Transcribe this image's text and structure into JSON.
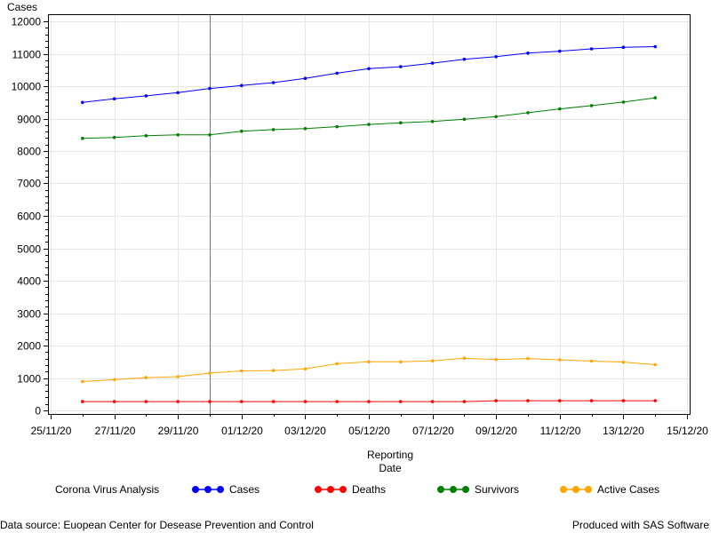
{
  "chart_data": {
    "type": "line",
    "ylabel": "Cases",
    "xlabel_lines": [
      "Reporting",
      "Date"
    ],
    "ylim": [
      0,
      12000
    ],
    "yticks": [
      0,
      1000,
      2000,
      3000,
      4000,
      5000,
      6000,
      7000,
      8000,
      9000,
      10000,
      11000,
      12000
    ],
    "xlim": [
      "2020-11-25",
      "2020-12-15"
    ],
    "xtick_labels": [
      "25/11/20",
      "27/11/20",
      "29/11/20",
      "01/12/20",
      "03/12/20",
      "05/12/20",
      "07/12/20",
      "09/12/20",
      "11/12/20",
      "13/12/20",
      "15/12/20"
    ],
    "reference_line_x": "2020-11-30",
    "grid": true,
    "legend_position": "bottom",
    "x": [
      "2020-11-26",
      "2020-11-27",
      "2020-11-28",
      "2020-11-29",
      "2020-11-30",
      "2020-12-01",
      "2020-12-02",
      "2020-12-03",
      "2020-12-04",
      "2020-12-05",
      "2020-12-06",
      "2020-12-07",
      "2020-12-08",
      "2020-12-09",
      "2020-12-10",
      "2020-12-11",
      "2020-12-12",
      "2020-12-13",
      "2020-12-14"
    ],
    "series": [
      {
        "name": "Cases",
        "color": "#0000ff",
        "values": [
          9500,
          9610,
          9700,
          9800,
          9930,
          10020,
          10110,
          10240,
          10400,
          10540,
          10600,
          10710,
          10830,
          10910,
          11020,
          11080,
          11150,
          11200,
          11220
        ]
      },
      {
        "name": "Deaths",
        "color": "#ff0000",
        "values": [
          270,
          270,
          270,
          270,
          270,
          270,
          270,
          270,
          270,
          270,
          270,
          270,
          270,
          300,
          300,
          300,
          300,
          300,
          300
        ]
      },
      {
        "name": "Survivors",
        "color": "#008000",
        "values": [
          8390,
          8420,
          8470,
          8500,
          8500,
          8610,
          8660,
          8690,
          8750,
          8820,
          8870,
          8910,
          8980,
          9060,
          9180,
          9300,
          9400,
          9510,
          9640
        ]
      },
      {
        "name": "Active Cases",
        "color": "#ffa500",
        "values": [
          890,
          950,
          1010,
          1040,
          1150,
          1220,
          1230,
          1280,
          1440,
          1500,
          1500,
          1530,
          1610,
          1570,
          1600,
          1560,
          1520,
          1490,
          1410
        ]
      }
    ]
  },
  "legend": {
    "title": "Corona Virus Analysis"
  },
  "footer": {
    "left": "Data source: Euopean Center for Desease Prevention and Control",
    "right": "Produced with SAS Software"
  }
}
